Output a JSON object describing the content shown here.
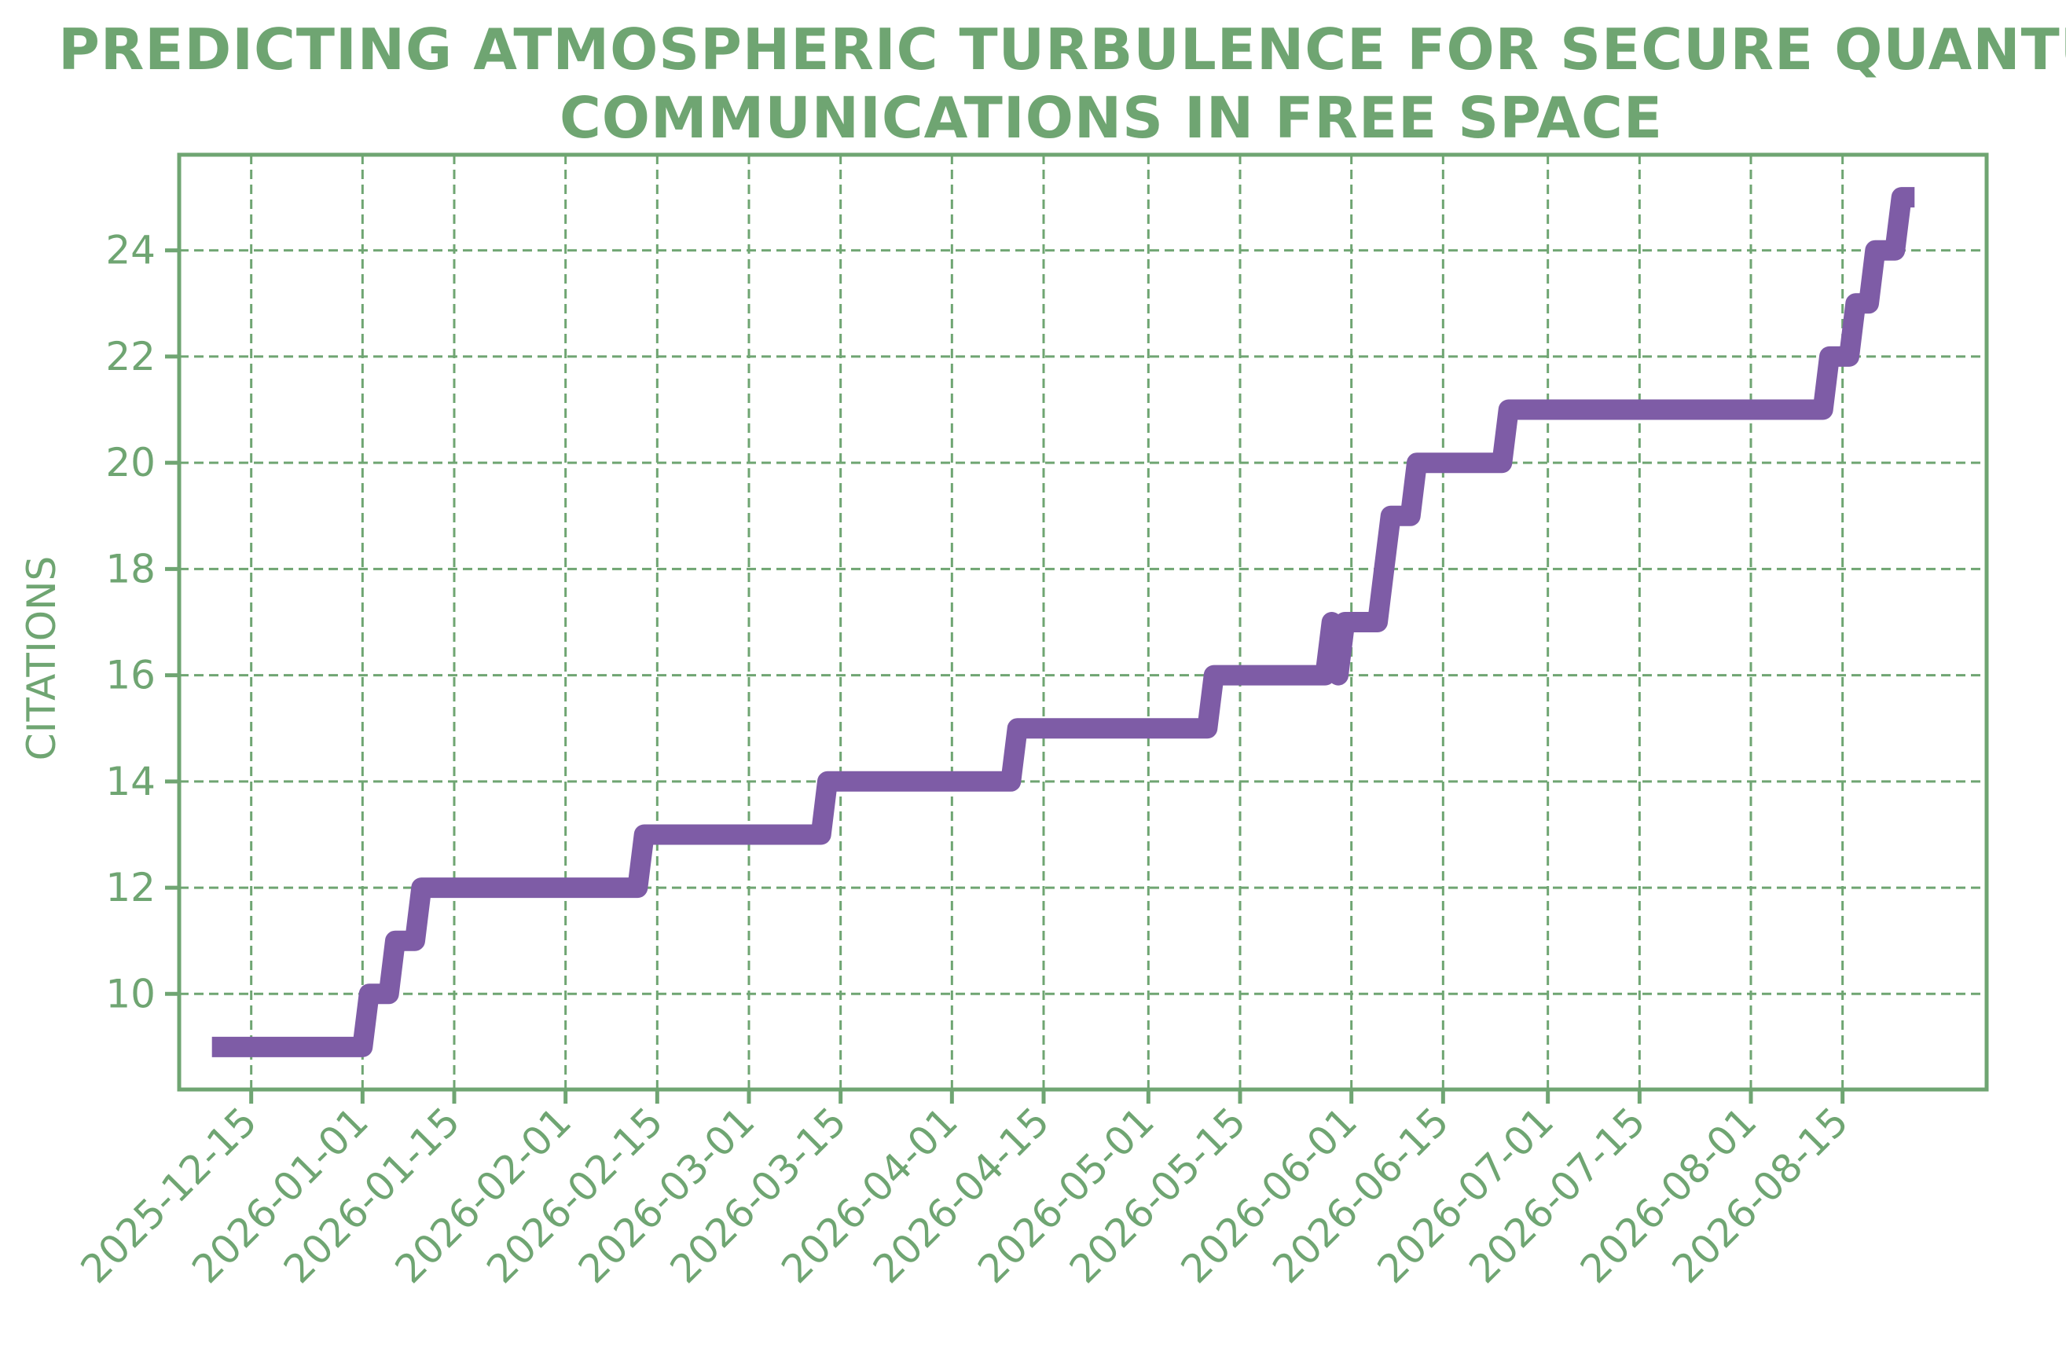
{
  "chart_data": {
    "type": "line",
    "title_lines": [
      "PREDICTING ATMOSPHERIC TURBULENCE FOR SECURE QUANTUM",
      "COMMUNICATIONS IN FREE SPACE"
    ],
    "xlabel": "",
    "ylabel": "CITATIONS",
    "x_ticks": [
      "2025-12-15",
      "2026-01-01",
      "2026-01-15",
      "2026-02-01",
      "2026-02-15",
      "2026-03-01",
      "2026-03-15",
      "2026-04-01",
      "2026-04-15",
      "2026-05-01",
      "2026-05-15",
      "2026-06-01",
      "2026-06-15",
      "2026-07-01",
      "2026-07-15",
      "2026-08-01",
      "2026-08-15"
    ],
    "y_ticks": [
      10,
      12,
      14,
      16,
      18,
      20,
      22,
      24
    ],
    "xlim": [
      "2025-12-04",
      "2026-09-06"
    ],
    "ylim": [
      8.2,
      25.8
    ],
    "grid": true,
    "colors": {
      "axis": "#6fa572",
      "line": "#7e5ca6"
    },
    "series": [
      {
        "name": "",
        "points": [
          [
            "2025-12-09",
            9
          ],
          [
            "2025-12-15",
            9
          ],
          [
            "2025-12-22",
            9
          ],
          [
            "2026-01-01",
            9
          ],
          [
            "2026-01-02",
            10
          ],
          [
            "2026-01-05",
            10
          ],
          [
            "2026-01-06",
            11
          ],
          [
            "2026-01-09",
            11
          ],
          [
            "2026-01-10",
            12
          ],
          [
            "2026-01-20",
            12
          ],
          [
            "2026-02-01",
            12
          ],
          [
            "2026-02-12",
            12
          ],
          [
            "2026-02-13",
            13
          ],
          [
            "2026-02-25",
            13
          ],
          [
            "2026-03-12",
            13
          ],
          [
            "2026-03-13",
            14
          ],
          [
            "2026-03-25",
            14
          ],
          [
            "2026-04-10",
            14
          ],
          [
            "2026-04-11",
            15
          ],
          [
            "2026-04-25",
            15
          ],
          [
            "2026-05-10",
            15
          ],
          [
            "2026-05-11",
            16
          ],
          [
            "2026-05-20",
            16
          ],
          [
            "2026-05-28",
            16
          ],
          [
            "2026-05-29",
            17
          ],
          [
            "2026-05-30",
            16
          ],
          [
            "2026-05-31",
            17
          ],
          [
            "2026-06-05",
            17
          ],
          [
            "2026-06-06",
            18
          ],
          [
            "2026-06-07",
            19
          ],
          [
            "2026-06-10",
            19
          ],
          [
            "2026-06-11",
            20
          ],
          [
            "2026-06-20",
            20
          ],
          [
            "2026-06-24",
            20
          ],
          [
            "2026-06-25",
            21
          ],
          [
            "2026-07-10",
            21
          ],
          [
            "2026-07-25",
            21
          ],
          [
            "2026-08-05",
            21
          ],
          [
            "2026-08-12",
            21
          ],
          [
            "2026-08-13",
            22
          ],
          [
            "2026-08-16",
            22
          ],
          [
            "2026-08-17",
            23
          ],
          [
            "2026-08-19",
            23
          ],
          [
            "2026-08-20",
            24
          ],
          [
            "2026-08-23",
            24
          ],
          [
            "2026-08-24",
            25
          ],
          [
            "2026-08-26",
            25
          ]
        ]
      }
    ]
  }
}
